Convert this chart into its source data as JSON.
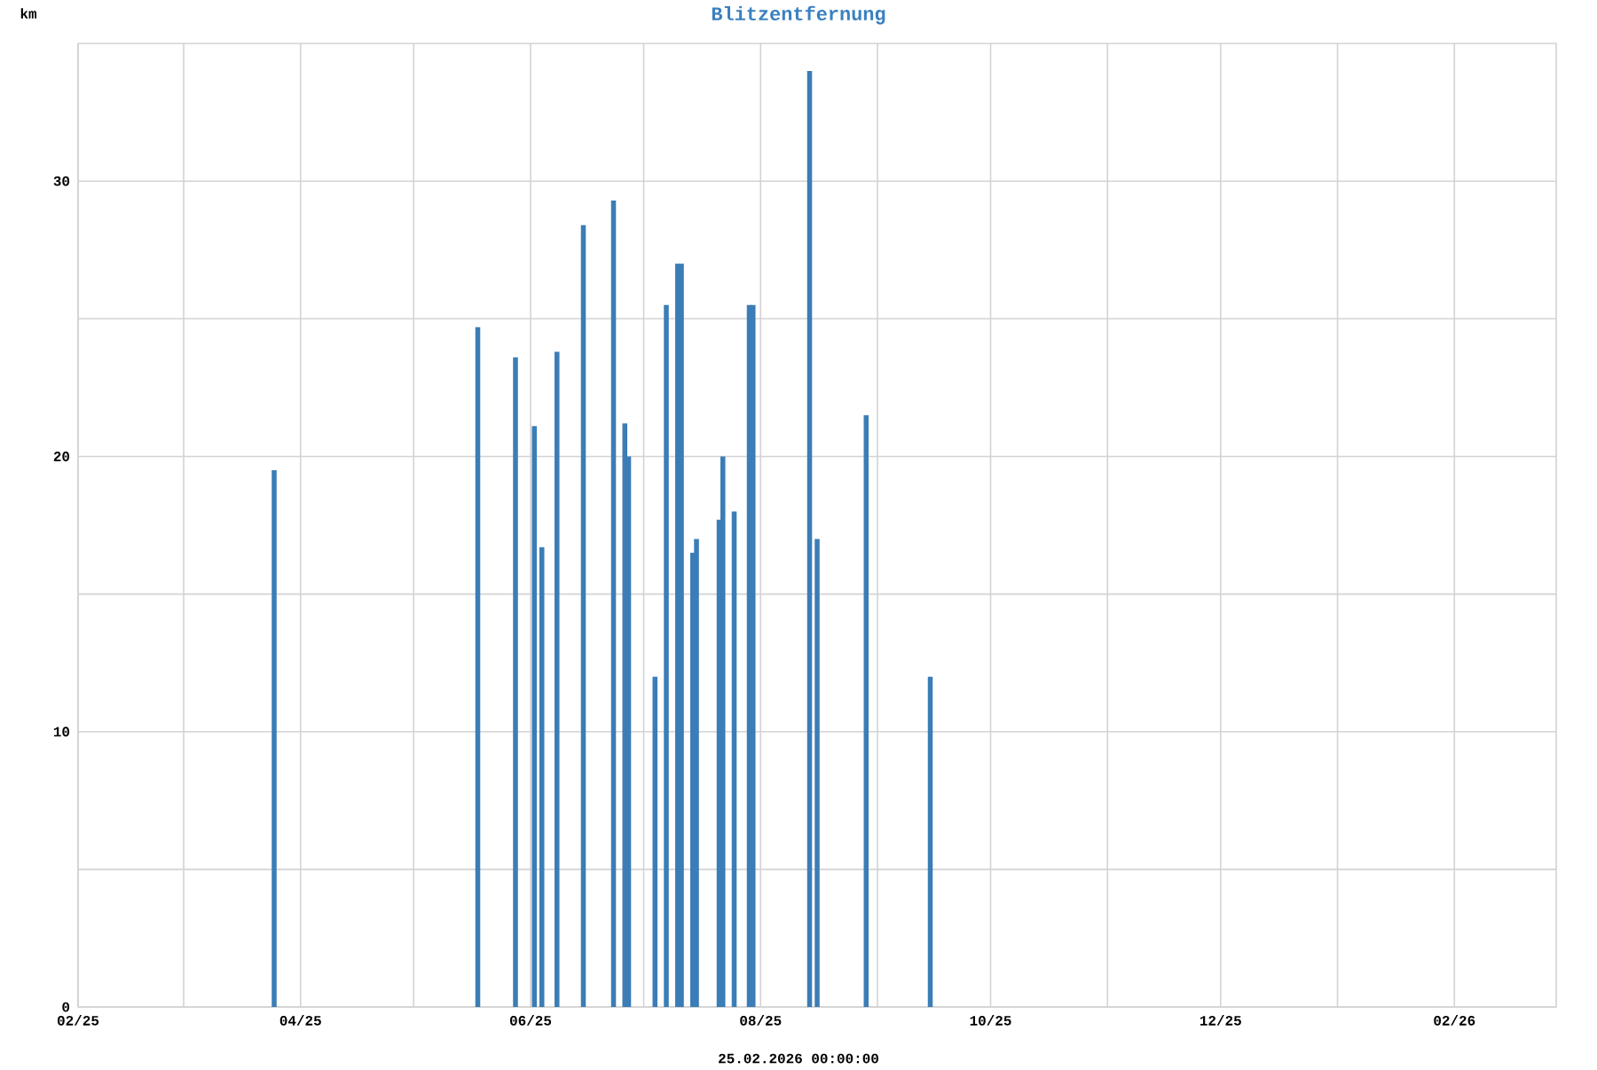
{
  "chart_data": {
    "type": "bar",
    "title": "Blitzentfernung",
    "xlabel": "25.02.2026 00:00:00",
    "ylabel": "km",
    "x": [
      "2025-03-25",
      "2025-05-18",
      "2025-05-28",
      "2025-06-02",
      "2025-06-04",
      "2025-06-08",
      "2025-06-15",
      "2025-06-23",
      "2025-06-26",
      "2025-06-27",
      "2025-07-04",
      "2025-07-07",
      "2025-07-10",
      "2025-07-11",
      "2025-07-14",
      "2025-07-15",
      "2025-07-21",
      "2025-07-22",
      "2025-07-25",
      "2025-07-29",
      "2025-07-30",
      "2025-08-14",
      "2025-08-16",
      "2025-08-29",
      "2025-09-15"
    ],
    "values": [
      19.5,
      24.7,
      23.6,
      21.1,
      16.7,
      23.8,
      28.4,
      29.3,
      21.2,
      20.0,
      12.0,
      25.5,
      27.0,
      27.0,
      16.5,
      17.0,
      17.7,
      20.0,
      18.0,
      25.5,
      25.5,
      34.0,
      17.0,
      21.5,
      12.0
    ],
    "color": "#3b7db6",
    "xlim": [
      "2025-02-01",
      "2026-02-28"
    ],
    "xticks": [
      {
        "value": "2025-02-01",
        "label": "02/25"
      },
      {
        "value": "2025-03-01",
        "label": null
      },
      {
        "value": "2025-04-01",
        "label": "04/25"
      },
      {
        "value": "2025-05-01",
        "label": null
      },
      {
        "value": "2025-06-01",
        "label": "06/25"
      },
      {
        "value": "2025-07-01",
        "label": null
      },
      {
        "value": "2025-08-01",
        "label": "08/25"
      },
      {
        "value": "2025-09-01",
        "label": null
      },
      {
        "value": "2025-10-01",
        "label": "10/25"
      },
      {
        "value": "2025-11-01",
        "label": null
      },
      {
        "value": "2025-12-01",
        "label": "12/25"
      },
      {
        "value": "2026-01-01",
        "label": null
      },
      {
        "value": "2026-02-01",
        "label": "02/26"
      }
    ],
    "ylim": [
      0,
      35
    ],
    "yticks": [
      0,
      {
        "value": 5,
        "label": null
      },
      10,
      {
        "value": 15,
        "label": null
      },
      20,
      {
        "value": 25,
        "label": null
      },
      30
    ],
    "grid": true
  }
}
